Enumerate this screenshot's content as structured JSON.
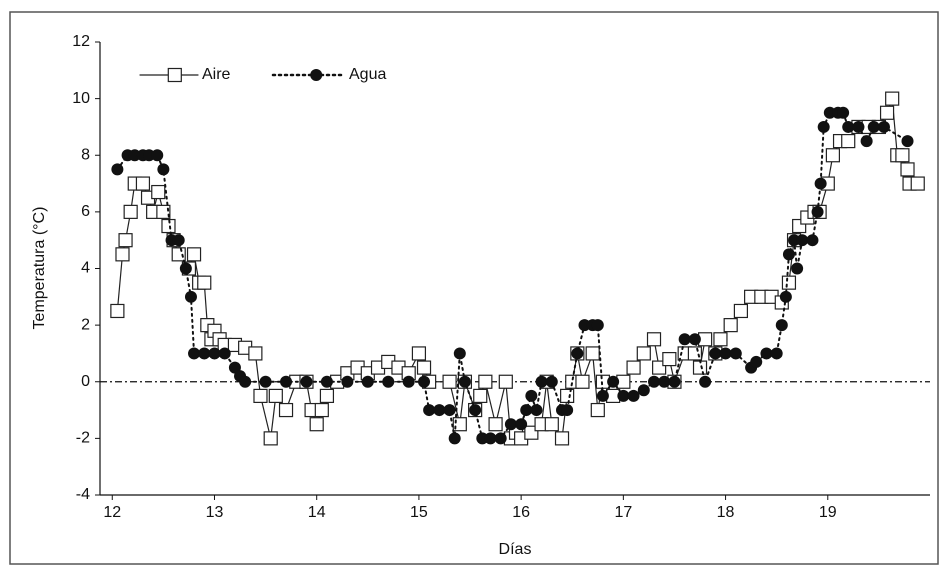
{
  "chart_data": {
    "type": "line",
    "xlabel": "Días",
    "ylabel": "Temperatura (°C)",
    "xlim": [
      11.88,
      20
    ],
    "xticks": [
      12,
      13,
      14,
      15,
      16,
      17,
      18,
      19
    ],
    "ylim": [
      -4,
      12
    ],
    "yticks": [
      -4,
      -2,
      0,
      2,
      4,
      6,
      8,
      10,
      12
    ],
    "grid": false,
    "legend": "upper left",
    "reference_line": 0,
    "series": [
      {
        "name": "Aire",
        "color": "#222222",
        "line_style": "solid",
        "marker": "square",
        "x": [
          12.05,
          12.1,
          12.13,
          12.18,
          12.22,
          12.3,
          12.35,
          12.4,
          12.45,
          12.5,
          12.55,
          12.6,
          12.65,
          12.75,
          12.8,
          12.85,
          12.9,
          12.93,
          12.97,
          13.0,
          13.05,
          13.1,
          13.2,
          13.3,
          13.4,
          13.45,
          13.55,
          13.6,
          13.7,
          13.8,
          13.9,
          13.95,
          14.0,
          14.05,
          14.1,
          14.2,
          14.3,
          14.4,
          14.5,
          14.6,
          14.7,
          14.8,
          14.9,
          15.0,
          15.05,
          15.1,
          15.3,
          15.4,
          15.45,
          15.55,
          15.6,
          15.65,
          15.75,
          15.85,
          15.9,
          15.95,
          16.0,
          16.1,
          16.2,
          16.25,
          16.3,
          16.4,
          16.45,
          16.5,
          16.55,
          16.6,
          16.7,
          16.75,
          16.8,
          16.9,
          17.0,
          17.1,
          17.2,
          17.3,
          17.35,
          17.45,
          17.5,
          17.6,
          17.7,
          17.75,
          17.8,
          17.9,
          17.95,
          18.05,
          18.15,
          18.25,
          18.35,
          18.45,
          18.55,
          18.62,
          18.67,
          18.72,
          18.8,
          18.87,
          18.92,
          19.0,
          19.05,
          19.12,
          19.2,
          19.3,
          19.4,
          19.5,
          19.58,
          19.63,
          19.68,
          19.73,
          19.78,
          19.8,
          19.88
        ],
        "values": [
          2.5,
          4.5,
          5,
          6,
          7,
          7,
          6.5,
          6,
          6.7,
          6,
          5.5,
          5,
          4.5,
          4,
          4.5,
          3.5,
          3.5,
          2,
          1.5,
          1.8,
          1.5,
          1.3,
          1.3,
          1.2,
          1,
          -0.5,
          -2,
          -0.5,
          -1,
          0,
          0,
          -1,
          -1.5,
          -1,
          -0.5,
          0,
          0.3,
          0.5,
          0.3,
          0.5,
          0.7,
          0.5,
          0.3,
          1,
          0.5,
          0,
          0,
          -1.5,
          0,
          -1,
          -0.5,
          0,
          -1.5,
          0,
          -2,
          -1.8,
          -2,
          -1.8,
          -1.5,
          0,
          -1.5,
          -2,
          -0.5,
          0,
          1,
          0,
          1,
          -1,
          0,
          -0.5,
          0,
          0.5,
          1,
          1.5,
          0.5,
          0.8,
          0,
          1,
          1,
          0.5,
          1.5,
          1,
          1.5,
          2,
          2.5,
          3,
          3,
          3,
          2.8,
          3.5,
          5,
          5.5,
          5.8,
          6,
          6,
          7,
          8,
          8.5,
          8.5,
          9,
          9,
          9,
          9.5,
          10,
          8,
          8,
          7.5,
          7,
          7
        ]
      },
      {
        "name": "Agua",
        "color": "#111111",
        "line_style": "dotted",
        "marker": "circle",
        "x": [
          12.05,
          12.15,
          12.22,
          12.3,
          12.36,
          12.44,
          12.5,
          12.58,
          12.65,
          12.72,
          12.77,
          12.8,
          12.9,
          13.0,
          13.1,
          13.2,
          13.25,
          13.3,
          13.5,
          13.7,
          13.9,
          14.1,
          14.3,
          14.5,
          14.7,
          14.9,
          15.05,
          15.1,
          15.2,
          15.3,
          15.35,
          15.4,
          15.45,
          15.55,
          15.62,
          15.7,
          15.8,
          15.9,
          16.0,
          16.05,
          16.1,
          16.15,
          16.2,
          16.3,
          16.4,
          16.45,
          16.55,
          16.62,
          16.7,
          16.75,
          16.8,
          16.9,
          17.0,
          17.1,
          17.2,
          17.3,
          17.4,
          17.5,
          17.6,
          17.7,
          17.8,
          17.9,
          18.0,
          18.1,
          18.25,
          18.3,
          18.4,
          18.5,
          18.55,
          18.59,
          18.62,
          18.67,
          18.7,
          18.75,
          18.85,
          18.9,
          18.93,
          18.96,
          19.02,
          19.1,
          19.15,
          19.2,
          19.3,
          19.38,
          19.45,
          19.55,
          19.78
        ],
        "values": [
          7.5,
          8,
          8,
          8,
          8,
          8,
          7.5,
          5,
          5,
          4,
          3,
          1,
          1,
          1,
          1,
          0.5,
          0.2,
          0,
          0,
          0,
          0,
          0,
          0,
          0,
          0,
          0,
          0,
          -1,
          -1,
          -1,
          -2,
          1,
          0,
          -1,
          -2,
          -2,
          -2,
          -1.5,
          -1.5,
          -1,
          -0.5,
          -1,
          0,
          0,
          -1,
          -1,
          1,
          2,
          2,
          2,
          -0.5,
          0,
          -0.5,
          -0.5,
          -0.3,
          0,
          0,
          0,
          1.5,
          1.5,
          0,
          1,
          1,
          1,
          0.5,
          0.7,
          1,
          1,
          2,
          3,
          4.5,
          5,
          4,
          5,
          5,
          6,
          7,
          9,
          9.5,
          9.5,
          9.5,
          9,
          9,
          8.5,
          9,
          9,
          8.5
        ]
      }
    ]
  }
}
